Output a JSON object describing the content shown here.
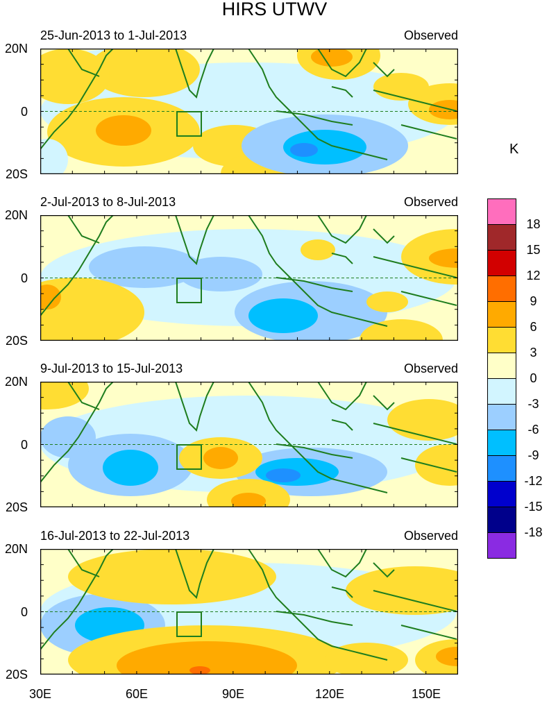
{
  "title": "HIRS UTWV",
  "unit_label": "K",
  "panels": [
    {
      "period": "25-Jun-2013 to 1-Jul-2013",
      "label": "Observed"
    },
    {
      "period": "2-Jul-2013 to 8-Jul-2013",
      "label": "Observed"
    },
    {
      "period": "9-Jul-2013 to 15-Jul-2013",
      "label": "Observed"
    },
    {
      "period": "16-Jul-2013 to 22-Jul-2013",
      "label": "Observed"
    }
  ],
  "lat_labels": [
    "20N",
    "0",
    "20S"
  ],
  "lon_labels": [
    "30E",
    "60E",
    "90E",
    "120E",
    "150E"
  ],
  "colorbar": {
    "labels": [
      "18",
      "15",
      "12",
      "9",
      "6",
      "3",
      "0",
      "-3",
      "-6",
      "-9",
      "-12",
      "-15",
      "-18"
    ],
    "colors": [
      "#ff6ebd",
      "#a0282a",
      "#d20000",
      "#ff6e00",
      "#ffaa00",
      "#ffdd33",
      "#ffffc8",
      "#d2f5ff",
      "#9ccfff",
      "#00bfff",
      "#1e90ff",
      "#0000cd",
      "#00008b",
      "#8a2be2"
    ]
  }
}
